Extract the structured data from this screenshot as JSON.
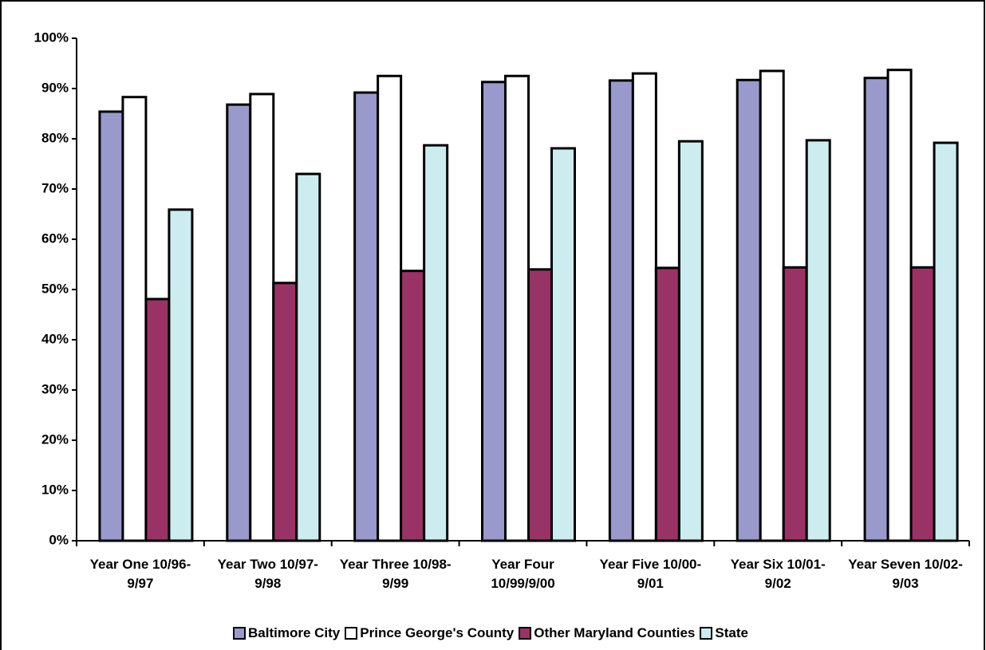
{
  "chart_data": {
    "type": "bar",
    "categories": [
      "Year One 10/96-9/97",
      "Year Two 10/97-9/98",
      "Year Three 10/98-9/99",
      "Year Four 10/99/9/00",
      "Year Five 10/00-9/01",
      "Year Six 10/01-9/02",
      "Year Seven 10/02-9/03"
    ],
    "series": [
      {
        "name": "Baltimore City",
        "color": "#9999cc",
        "values": [
          85.4,
          86.8,
          89.2,
          91.3,
          91.6,
          91.7,
          92.1
        ]
      },
      {
        "name": "Prince George's County",
        "color": "#ffffff",
        "values": [
          88.3,
          88.9,
          92.5,
          92.5,
          93.0,
          93.5,
          93.7
        ]
      },
      {
        "name": "Other Maryland Counties",
        "color": "#993366",
        "values": [
          48.1,
          51.3,
          53.7,
          54.0,
          54.3,
          54.4,
          54.4
        ]
      },
      {
        "name": "State",
        "color": "#ccecf0",
        "values": [
          65.9,
          73.0,
          78.7,
          78.1,
          79.5,
          79.7,
          79.2
        ]
      }
    ],
    "ylim": [
      0,
      100
    ],
    "yticks": [
      {
        "value": 0,
        "label": "0%"
      },
      {
        "value": 10,
        "label": "10%"
      },
      {
        "value": 20,
        "label": "20%"
      },
      {
        "value": 30,
        "label": "30%"
      },
      {
        "value": 40,
        "label": "40%"
      },
      {
        "value": 50,
        "label": "50%"
      },
      {
        "value": 60,
        "label": "60%"
      },
      {
        "value": 70,
        "label": "70%"
      },
      {
        "value": 80,
        "label": "80%"
      },
      {
        "value": 90,
        "label": "90%"
      },
      {
        "value": 100,
        "label": "100%"
      }
    ],
    "grid": false,
    "legend": "bottom"
  }
}
